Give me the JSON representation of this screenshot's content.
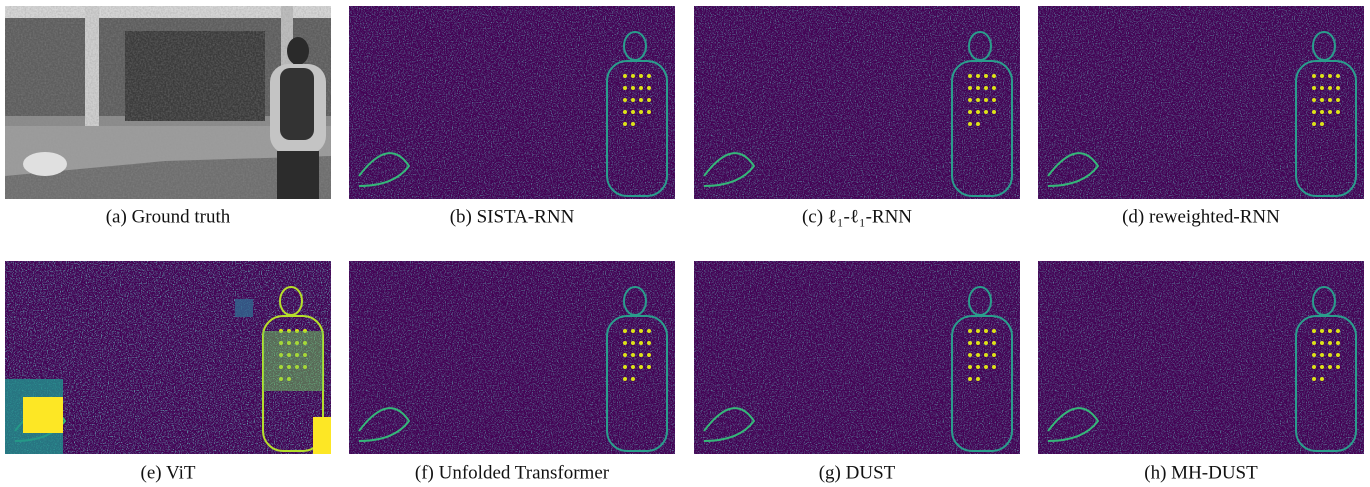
{
  "figure": {
    "panels": [
      {
        "caption": "(a) Ground truth"
      },
      {
        "caption": "(b) SISTA-RNN"
      },
      {
        "caption": "(c) ℓ₁-ℓ₁-RNN"
      },
      {
        "caption": "(d) reweighted-RNN"
      },
      {
        "caption": "(e) ViT"
      },
      {
        "caption": "(f) Unfolded Transformer"
      },
      {
        "caption": "(g) DUST"
      },
      {
        "caption": "(h) MH-DUST"
      }
    ]
  }
}
